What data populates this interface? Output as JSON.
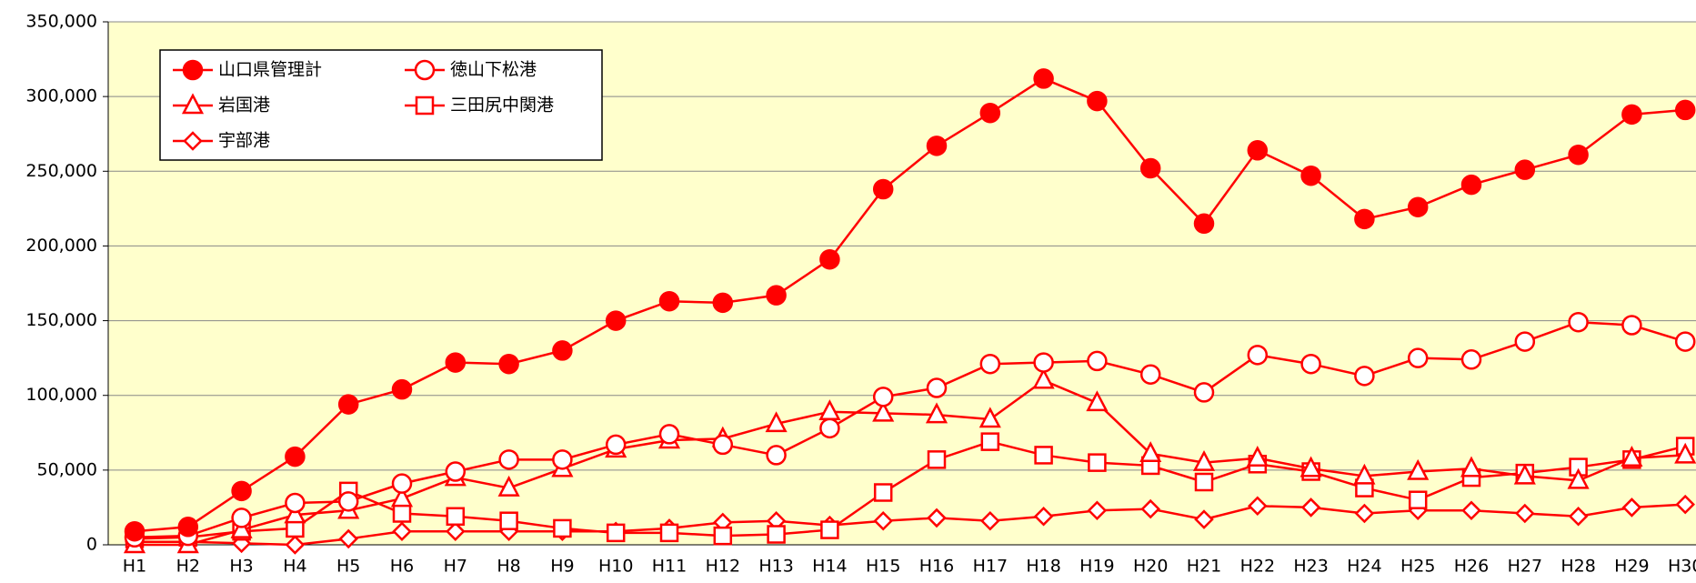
{
  "chart_data": {
    "type": "line",
    "categories": [
      "H1",
      "H2",
      "H3",
      "H4",
      "H5",
      "H6",
      "H7",
      "H8",
      "H9",
      "H10",
      "H11",
      "H12",
      "H13",
      "H14",
      "H15",
      "H16",
      "H17",
      "H18",
      "H19",
      "H20",
      "H21",
      "H22",
      "H23",
      "H24",
      "H25",
      "H26",
      "H27",
      "H28",
      "H29",
      "H30"
    ],
    "series": [
      {
        "name": "山口県管理計",
        "color": "#ff0000",
        "marker": "filled-circle",
        "values": [
          9000,
          12000,
          36000,
          59000,
          94000,
          104000,
          122000,
          121000,
          130000,
          150000,
          163000,
          162000,
          167000,
          191000,
          238000,
          267000,
          289000,
          312000,
          297000,
          252000,
          215000,
          264000,
          247000,
          218000,
          226000,
          241000,
          251000,
          261000,
          288000,
          291000
        ]
      },
      {
        "name": "徳山下松港",
        "color": "#ff0000",
        "marker": "circle",
        "values": [
          5000,
          6000,
          18000,
          28000,
          29000,
          41000,
          49000,
          57000,
          57000,
          67000,
          74000,
          67000,
          60000,
          78000,
          99000,
          105000,
          121000,
          122000,
          123000,
          114000,
          102000,
          127000,
          121000,
          113000,
          125000,
          124000,
          136000,
          149000,
          147000,
          136000
        ]
      },
      {
        "name": "岩国港",
        "color": "#ff0000",
        "marker": "triangle",
        "values": [
          0,
          0,
          10000,
          20000,
          23000,
          31000,
          45000,
          38000,
          51000,
          64000,
          70000,
          71000,
          81000,
          89000,
          88000,
          87000,
          84000,
          110000,
          95000,
          61000,
          55000,
          58000,
          51000,
          46000,
          49000,
          51000,
          46000,
          43000,
          58000,
          60000
        ]
      },
      {
        "name": "三田尻中関港",
        "color": "#ff0000",
        "marker": "square",
        "values": [
          4000,
          5000,
          9000,
          11000,
          36000,
          21000,
          19000,
          16000,
          11000,
          8000,
          8000,
          6000,
          7000,
          10000,
          35000,
          57000,
          69000,
          60000,
          55000,
          53000,
          42000,
          54000,
          49000,
          38000,
          30000,
          45000,
          48000,
          52000,
          57000,
          66000
        ]
      },
      {
        "name": "宇部港",
        "color": "#ff0000",
        "marker": "diamond",
        "values": [
          2000,
          2000,
          1000,
          0,
          4000,
          9000,
          9000,
          9000,
          9000,
          9000,
          11000,
          15000,
          16000,
          13000,
          16000,
          18000,
          16000,
          19000,
          23000,
          24000,
          17000,
          26000,
          25000,
          21000,
          23000,
          23000,
          21000,
          19000,
          25000,
          27000
        ]
      }
    ],
    "ylim": [
      0,
      350000
    ],
    "yticks": [
      0,
      {
        "value": 50000,
        "label": "50,000"
      },
      {
        "value": 100000,
        "label": "100,000"
      },
      {
        "value": 150000,
        "label": "150,000"
      },
      {
        "value": 200000,
        "label": "200,000"
      },
      {
        "value": 250000,
        "label": "250,000"
      },
      {
        "value": 300000,
        "label": "300,000"
      },
      {
        "value": 350000,
        "label": "350,000"
      }
    ],
    "grid": true,
    "legend": "upper left",
    "background": "#ffffcc"
  }
}
